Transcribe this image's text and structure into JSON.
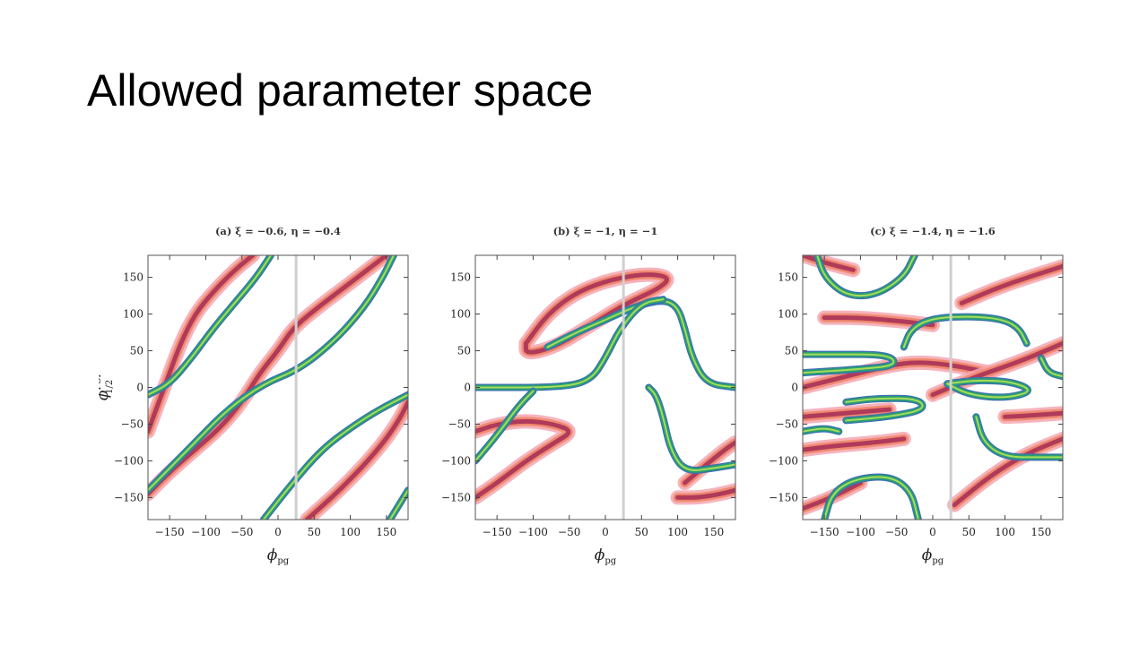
{
  "slide": {
    "title": "Allowed parameter space"
  },
  "colors": {
    "pink": "#f4a6b0",
    "salmon": "#f08a70",
    "crimson": "#b03a5a",
    "blue": "#3b6fb4",
    "teal": "#2aa070",
    "lime": "#a8dc5a",
    "guide": "#cfcfcf"
  },
  "chart_data": [
    {
      "type": "contour",
      "title": "(a) ξ = −0.6, η = −0.4",
      "xlabel": "ϕ",
      "xlabel_sub": "pg",
      "ylabel": "ϕ",
      "ylabel_sub": "1/2",
      "ylabel_sup": "FSI",
      "xlim": [
        -180,
        180
      ],
      "ylim": [
        -180,
        180
      ],
      "xticks": [
        -150,
        -100,
        -50,
        0,
        50,
        100,
        150
      ],
      "yticks": [
        -150,
        -100,
        -50,
        0,
        50,
        100,
        150
      ],
      "xtick_labels": [
        "−150",
        "−100",
        "−50",
        "0",
        "50",
        "100",
        "150"
      ],
      "ytick_labels": [
        "−150",
        "−100",
        "−50",
        "0",
        "50",
        "100",
        "150"
      ],
      "vline_x": 25,
      "red_bands": [
        [
          [
            -180,
            -60
          ],
          [
            -165,
            -20
          ],
          [
            -150,
            20
          ],
          [
            -135,
            60
          ],
          [
            -115,
            100
          ],
          [
            -90,
            130
          ],
          [
            -60,
            160
          ],
          [
            -35,
            180
          ]
        ],
        [
          [
            -180,
            -145
          ],
          [
            -150,
            -115
          ],
          [
            -115,
            -85
          ],
          [
            -80,
            -55
          ],
          [
            -50,
            -20
          ],
          [
            -25,
            20
          ],
          [
            0,
            50
          ],
          [
            20,
            80
          ],
          [
            50,
            105
          ],
          [
            90,
            135
          ],
          [
            130,
            165
          ],
          [
            150,
            180
          ]
        ],
        [
          [
            40,
            -180
          ],
          [
            80,
            -145
          ],
          [
            120,
            -105
          ],
          [
            150,
            -70
          ],
          [
            170,
            -40
          ],
          [
            180,
            -20
          ]
        ]
      ],
      "green_bands": [
        [
          [
            -180,
            -10
          ],
          [
            -150,
            5
          ],
          [
            -120,
            40
          ],
          [
            -90,
            80
          ],
          [
            -60,
            115
          ],
          [
            -30,
            150
          ],
          [
            -10,
            180
          ]
        ],
        [
          [
            -180,
            -140
          ],
          [
            -150,
            -110
          ],
          [
            -110,
            -70
          ],
          [
            -70,
            -30
          ],
          [
            -20,
            5
          ],
          [
            30,
            25
          ],
          [
            80,
            65
          ],
          [
            120,
            110
          ],
          [
            145,
            150
          ],
          [
            160,
            180
          ]
        ],
        [
          [
            -20,
            -180
          ],
          [
            20,
            -130
          ],
          [
            60,
            -85
          ],
          [
            100,
            -55
          ],
          [
            140,
            -30
          ],
          [
            180,
            -10
          ]
        ],
        [
          [
            155,
            -180
          ],
          [
            180,
            -140
          ]
        ]
      ]
    },
    {
      "type": "contour",
      "title": "(b) ξ = −1, η = −1",
      "xlabel": "ϕ",
      "xlabel_sub": "pg",
      "xlim": [
        -180,
        180
      ],
      "ylim": [
        -180,
        180
      ],
      "xticks": [
        -150,
        -100,
        -50,
        0,
        50,
        100,
        150
      ],
      "yticks": [
        -150,
        -100,
        -50,
        0,
        50,
        100,
        150
      ],
      "xtick_labels": [
        "−150",
        "−100",
        "−50",
        "0",
        "50",
        "100",
        "150"
      ],
      "ytick_labels": [
        "−150",
        "−100",
        "−50",
        "0",
        "50",
        "100",
        "150"
      ],
      "vline_x": 25,
      "red_bands": [
        [
          [
            -110,
            60
          ],
          [
            -80,
            100
          ],
          [
            -40,
            130
          ],
          [
            10,
            148
          ],
          [
            60,
            155
          ],
          [
            90,
            150
          ],
          [
            75,
            135
          ],
          [
            30,
            115
          ],
          [
            -20,
            85
          ],
          [
            -70,
            55
          ],
          [
            -110,
            45
          ],
          [
            -110,
            60
          ]
        ],
        [
          [
            -180,
            -60
          ],
          [
            -150,
            -50
          ],
          [
            -110,
            -45
          ],
          [
            -70,
            -50
          ],
          [
            -45,
            -60
          ],
          [
            -70,
            -75
          ],
          [
            -110,
            -100
          ],
          [
            -150,
            -130
          ],
          [
            -180,
            -150
          ]
        ],
        [
          [
            100,
            -150
          ],
          [
            130,
            -150
          ],
          [
            160,
            -145
          ],
          [
            180,
            -140
          ]
        ],
        [
          [
            110,
            -130
          ],
          [
            140,
            -105
          ],
          [
            165,
            -85
          ],
          [
            180,
            -75
          ]
        ]
      ],
      "green_bands": [
        [
          [
            -80,
            55
          ],
          [
            -40,
            75
          ],
          [
            0,
            92
          ],
          [
            40,
            110
          ],
          [
            80,
            120
          ],
          [
            100,
            110
          ],
          [
            110,
            80
          ],
          [
            120,
            40
          ],
          [
            140,
            5
          ],
          [
            180,
            0
          ]
        ],
        [
          [
            -180,
            0
          ],
          [
            -60,
            0
          ],
          [
            -20,
            10
          ],
          [
            0,
            40
          ],
          [
            20,
            80
          ],
          [
            50,
            115
          ],
          [
            80,
            120
          ]
        ],
        [
          [
            -180,
            -100
          ],
          [
            -150,
            -65
          ],
          [
            -120,
            -25
          ],
          [
            -100,
            -5
          ]
        ],
        [
          [
            180,
            -105
          ],
          [
            150,
            -110
          ],
          [
            110,
            -115
          ],
          [
            90,
            -85
          ],
          [
            80,
            -40
          ],
          [
            70,
            -10
          ],
          [
            60,
            0
          ]
        ]
      ]
    },
    {
      "type": "contour",
      "title": "(c) ξ = −1.4, η = −1.6",
      "xlabel": "ϕ",
      "xlabel_sub": "pg",
      "xlim": [
        -180,
        180
      ],
      "ylim": [
        -180,
        180
      ],
      "xticks": [
        -150,
        -100,
        -50,
        0,
        50,
        100,
        150
      ],
      "yticks": [
        -150,
        -100,
        -50,
        0,
        50,
        100,
        150
      ],
      "xtick_labels": [
        "−150",
        "−100",
        "−50",
        "0",
        "50",
        "100",
        "150"
      ],
      "ytick_labels": [
        "−150",
        "−100",
        "−50",
        "0",
        "50",
        "100",
        "150"
      ],
      "vline_x": 25,
      "red_bands": [
        [
          [
            -180,
            180
          ],
          [
            -150,
            170
          ],
          [
            -110,
            160
          ]
        ],
        [
          [
            -150,
            95
          ],
          [
            -100,
            95
          ],
          [
            -40,
            90
          ],
          [
            0,
            85
          ]
        ],
        [
          [
            40,
            115
          ],
          [
            100,
            140
          ],
          [
            180,
            165
          ]
        ],
        [
          [
            -180,
            0
          ],
          [
            -120,
            15
          ],
          [
            -60,
            30
          ],
          [
            -20,
            35
          ],
          [
            30,
            30
          ],
          [
            80,
            20
          ]
        ],
        [
          [
            -180,
            -40
          ],
          [
            -120,
            -35
          ],
          [
            -60,
            -30
          ]
        ],
        [
          [
            0,
            -10
          ],
          [
            60,
            15
          ],
          [
            120,
            35
          ],
          [
            180,
            60
          ]
        ],
        [
          [
            -180,
            -85
          ],
          [
            -140,
            -80
          ],
          [
            -80,
            -75
          ],
          [
            -40,
            -70
          ]
        ],
        [
          [
            100,
            -40
          ],
          [
            140,
            -38
          ],
          [
            180,
            -35
          ]
        ],
        [
          [
            30,
            -160
          ],
          [
            80,
            -120
          ],
          [
            130,
            -90
          ],
          [
            180,
            -70
          ]
        ],
        [
          [
            -180,
            -165
          ],
          [
            -140,
            -150
          ],
          [
            -100,
            -130
          ]
        ]
      ],
      "green_bands": [
        [
          [
            -160,
            180
          ],
          [
            -150,
            150
          ],
          [
            -120,
            125
          ],
          [
            -80,
            125
          ],
          [
            -40,
            150
          ],
          [
            -25,
            180
          ]
        ],
        [
          [
            -150,
            -180
          ],
          [
            -140,
            -145
          ],
          [
            -110,
            -125
          ],
          [
            -60,
            -120
          ],
          [
            -30,
            -140
          ],
          [
            -20,
            -180
          ]
        ],
        [
          [
            -40,
            55
          ],
          [
            -30,
            80
          ],
          [
            0,
            95
          ],
          [
            60,
            97
          ],
          [
            100,
            92
          ],
          [
            120,
            80
          ],
          [
            130,
            60
          ]
        ],
        [
          [
            -180,
            45
          ],
          [
            -140,
            45
          ],
          [
            -60,
            45
          ],
          [
            -50,
            30
          ],
          [
            -100,
            25
          ],
          [
            -180,
            20
          ]
        ],
        [
          [
            -120,
            -20
          ],
          [
            -80,
            -15
          ],
          [
            -20,
            -15
          ],
          [
            -10,
            -30
          ],
          [
            -60,
            -40
          ],
          [
            -120,
            -45
          ]
        ],
        [
          [
            20,
            5
          ],
          [
            60,
            10
          ],
          [
            110,
            8
          ],
          [
            140,
            -5
          ],
          [
            100,
            -15
          ],
          [
            50,
            -10
          ],
          [
            20,
            5
          ]
        ],
        [
          [
            150,
            40
          ],
          [
            160,
            20
          ],
          [
            180,
            15
          ]
        ],
        [
          [
            60,
            -40
          ],
          [
            70,
            -75
          ],
          [
            100,
            -95
          ],
          [
            150,
            -95
          ],
          [
            180,
            -95
          ]
        ],
        [
          [
            -180,
            -60
          ],
          [
            -150,
            -55
          ],
          [
            -130,
            -60
          ]
        ]
      ]
    }
  ]
}
